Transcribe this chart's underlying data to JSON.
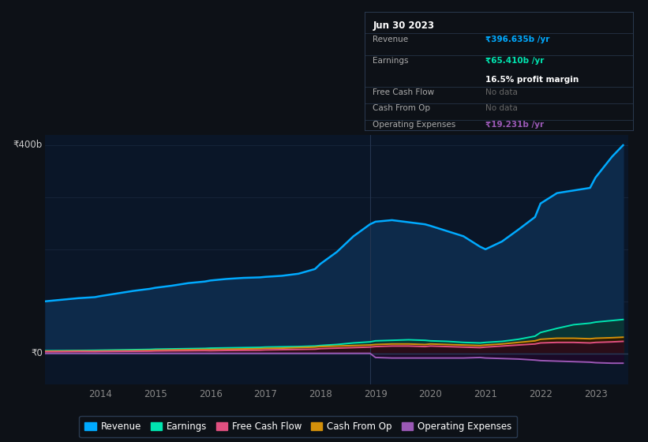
{
  "bg_color": "#0d1117",
  "plot_bg_color": "#0a1628",
  "grid_color": "#1a2a40",
  "years": [
    2013.0,
    2013.3,
    2013.6,
    2013.9,
    2014.0,
    2014.3,
    2014.6,
    2014.9,
    2015.0,
    2015.3,
    2015.6,
    2015.9,
    2016.0,
    2016.3,
    2016.6,
    2016.9,
    2017.0,
    2017.3,
    2017.6,
    2017.9,
    2018.0,
    2018.3,
    2018.6,
    2018.9,
    2019.0,
    2019.3,
    2019.6,
    2019.9,
    2020.0,
    2020.3,
    2020.6,
    2020.9,
    2021.0,
    2021.3,
    2021.6,
    2021.9,
    2022.0,
    2022.3,
    2022.6,
    2022.9,
    2023.0,
    2023.3,
    2023.5
  ],
  "revenue": [
    100,
    103,
    106,
    108,
    110,
    115,
    120,
    124,
    126,
    130,
    135,
    138,
    140,
    143,
    145,
    146,
    147,
    149,
    153,
    162,
    172,
    195,
    225,
    248,
    253,
    256,
    252,
    248,
    245,
    235,
    225,
    205,
    200,
    215,
    238,
    262,
    288,
    308,
    313,
    318,
    338,
    378,
    400
  ],
  "earnings": [
    5,
    5.2,
    5.5,
    5.8,
    6,
    6.5,
    7,
    7.5,
    8,
    8.5,
    9,
    9.5,
    10,
    10.5,
    11,
    11.5,
    12,
    12.5,
    13,
    14,
    15,
    17,
    20,
    22,
    24,
    25,
    26,
    25,
    24,
    23,
    21,
    20,
    21,
    23,
    27,
    33,
    40,
    48,
    55,
    58,
    60,
    63,
    65
  ],
  "free_cash_flow": [
    3,
    3.2,
    3.5,
    3.3,
    3.5,
    3.8,
    4,
    4.2,
    4.5,
    4.8,
    5,
    5.2,
    5,
    5.5,
    5.8,
    6,
    6.5,
    7,
    7.5,
    8,
    9,
    10,
    11,
    12,
    13,
    14,
    14,
    13,
    14,
    13,
    12,
    11,
    12,
    14,
    16,
    18,
    20,
    21,
    21,
    20,
    21,
    22,
    23
  ],
  "cash_from_op": [
    4,
    4.2,
    4.5,
    4.3,
    4.5,
    4.8,
    5,
    5.5,
    6,
    6.5,
    7,
    7.5,
    7.5,
    8,
    8.5,
    9,
    9.5,
    10,
    11,
    12,
    13,
    14,
    15,
    16,
    17,
    18,
    18,
    17,
    18,
    17,
    16,
    15,
    16,
    18,
    21,
    24,
    27,
    29,
    29,
    28,
    29,
    30,
    31
  ],
  "operating_expenses": [
    0,
    0,
    0,
    0,
    0,
    0,
    0,
    0,
    0,
    0,
    0,
    0,
    0,
    0,
    0,
    0,
    0,
    0,
    0,
    0,
    0,
    0,
    0,
    0,
    -8,
    -9,
    -9,
    -9,
    -9,
    -9,
    -9,
    -8,
    -9,
    -10,
    -11,
    -13,
    -14,
    -15,
    -16,
    -17,
    -18,
    -19,
    -19
  ],
  "revenue_color": "#00aaff",
  "revenue_fill": "#0d2a4a",
  "earnings_color": "#00e5b0",
  "earnings_fill": "#0a3535",
  "fcf_color": "#e05080",
  "fcf_fill": "#2a0d18",
  "cashop_color": "#d4900a",
  "cashop_fill": "#2a1a00",
  "opex_color": "#9b59b6",
  "opex_fill": "#1a0a28",
  "y400_label": "₹400b",
  "y0_label": "₹0",
  "x_ticks": [
    2013,
    2014,
    2015,
    2016,
    2017,
    2018,
    2019,
    2020,
    2021,
    2022,
    2023
  ],
  "x_tick_labels": [
    "",
    "2014",
    "2015",
    "2016",
    "2017",
    "2018",
    "2019",
    "2020",
    "2021",
    "2022",
    "2023"
  ],
  "ylim_min": -60,
  "ylim_max": 420,
  "info_box": {
    "title": "Jun 30 2023",
    "bg": "#0d1117",
    "border": "#2a3a50",
    "revenue_label": "Revenue",
    "revenue_value": "₹396.635b /yr",
    "revenue_color": "#00aaff",
    "earnings_label": "Earnings",
    "earnings_value": "₹65.410b /yr",
    "earnings_color": "#00e5b0",
    "margin_text": "16.5% profit margin",
    "fcf_label": "Free Cash Flow",
    "fcf_value": "No data",
    "cashop_label": "Cash From Op",
    "cashop_value": "No data",
    "opex_label": "Operating Expenses",
    "opex_value": "₹19.231b /yr",
    "opex_color": "#9b59b6"
  },
  "legend": [
    {
      "label": "Revenue",
      "color": "#00aaff"
    },
    {
      "label": "Earnings",
      "color": "#00e5b0"
    },
    {
      "label": "Free Cash Flow",
      "color": "#e05080"
    },
    {
      "label": "Cash From Op",
      "color": "#d4900a"
    },
    {
      "label": "Operating Expenses",
      "color": "#9b59b6"
    }
  ]
}
